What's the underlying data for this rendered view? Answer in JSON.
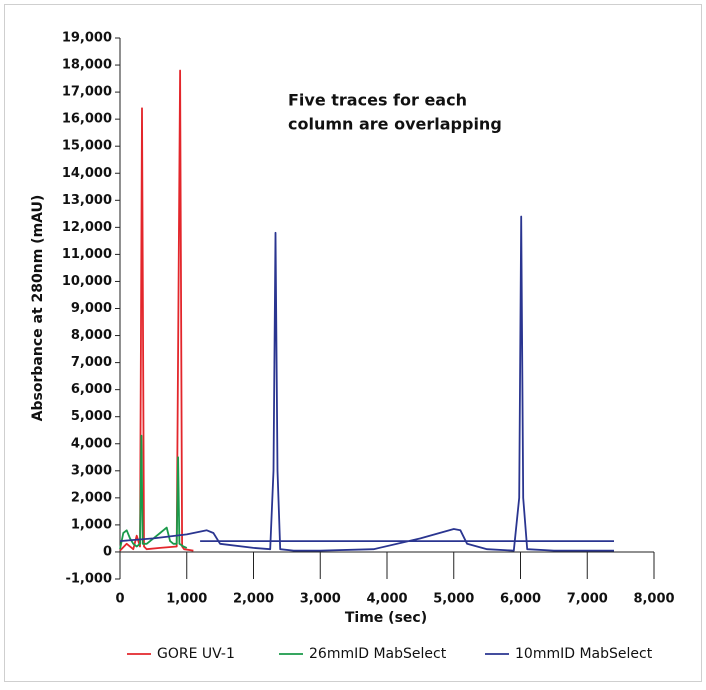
{
  "chart_data": {
    "type": "line",
    "annotation": [
      "Five traces for each",
      "column are overlapping"
    ],
    "x_label": "Time (sec)",
    "y_label": "Absorbance at 280nm (mAU)",
    "xlim": [
      0,
      8000
    ],
    "xticks": [
      0,
      {
        "value": 1000,
        "label": "1,000"
      },
      {
        "value": 2000,
        "label": "2,000"
      },
      {
        "value": 3000,
        "label": "3,000"
      },
      {
        "value": 4000,
        "label": "4,000"
      },
      {
        "value": 5000,
        "label": "5,000"
      },
      {
        "value": 6000,
        "label": "6,000"
      },
      {
        "value": 7000,
        "label": "7,000"
      },
      {
        "value": 8000,
        "label": "8,000"
      }
    ],
    "ylim": [
      -1000,
      19000
    ],
    "yticks": [
      {
        "value": -1000,
        "label": "-1,000"
      },
      0,
      {
        "value": 1000,
        "label": "1,000"
      },
      {
        "value": 2000,
        "label": "2,000"
      },
      {
        "value": 3000,
        "label": "3,000"
      },
      {
        "value": 4000,
        "label": "4,000"
      },
      {
        "value": 5000,
        "label": "5,000"
      },
      {
        "value": 6000,
        "label": "6,000"
      },
      {
        "value": 7000,
        "label": "7,000"
      },
      {
        "value": 8000,
        "label": "8,000"
      },
      {
        "value": 9000,
        "label": "9,000"
      },
      {
        "value": 10000,
        "label": "10,000"
      },
      {
        "value": 11000,
        "label": "11,000"
      },
      {
        "value": 12000,
        "label": "12,000"
      },
      {
        "value": 13000,
        "label": "13,000"
      },
      {
        "value": 14000,
        "label": "14,000"
      },
      {
        "value": 15000,
        "label": "15,000"
      },
      {
        "value": 16000,
        "label": "16,000"
      },
      {
        "value": 17000,
        "label": "17,000"
      },
      {
        "value": 18000,
        "label": "18,000"
      },
      {
        "value": 19000,
        "label": "19,000"
      }
    ],
    "grid": false,
    "legend": "bottom",
    "series": [
      {
        "name": "GORE UV-1",
        "color": "#e3262b",
        "x": [
          0,
          100,
          200,
          250,
          300,
          330,
          360,
          400,
          600,
          850,
          900,
          930,
          960,
          1100
        ],
        "values": [
          50,
          300,
          100,
          600,
          200,
          16400,
          200,
          100,
          150,
          200,
          17800,
          200,
          100,
          50
        ]
      },
      {
        "name": "26mmID MabSelect",
        "color": "#1a9a4a",
        "x": [
          0,
          50,
          100,
          150,
          200,
          250,
          300,
          320,
          340,
          400,
          500,
          600,
          700,
          750,
          800,
          850,
          870,
          890,
          950,
          1000
        ],
        "values": [
          100,
          700,
          800,
          500,
          300,
          200,
          300,
          4300,
          300,
          300,
          500,
          700,
          900,
          400,
          300,
          300,
          3500,
          300,
          200,
          150
        ]
      },
      {
        "name": "10mmID MabSelect",
        "color": "#2a3590",
        "x": [
          0,
          500,
          1000,
          1300,
          1400,
          1500,
          2000,
          2250,
          2300,
          2330,
          2360,
          2400,
          2600,
          3000,
          3800,
          4500,
          5000,
          5100,
          5200,
          5500,
          5900,
          5980,
          6010,
          6040,
          6100,
          6500,
          7400,
          7400,
          1200,
          7400
        ],
        "values": [
          400,
          500,
          650,
          800,
          700,
          300,
          150,
          100,
          3000,
          11800,
          3000,
          100,
          50,
          50,
          100,
          500,
          850,
          800,
          300,
          100,
          50,
          2000,
          12400,
          2000,
          100,
          50,
          50,
          null,
          400,
          400
        ]
      }
    ]
  }
}
